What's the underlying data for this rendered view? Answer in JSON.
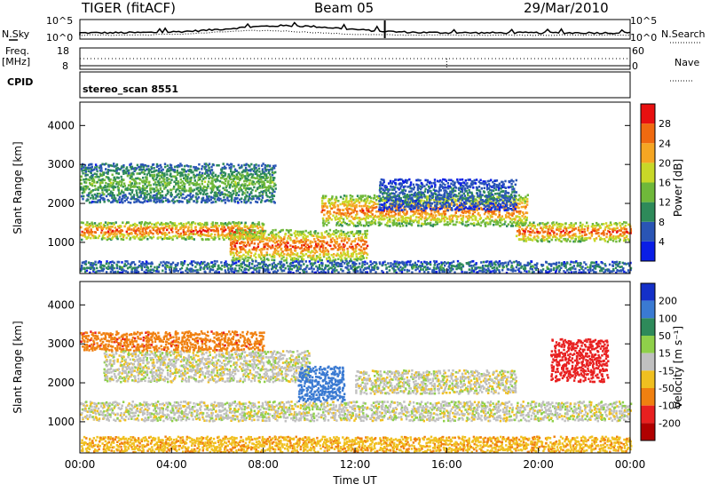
{
  "header": {
    "title": "TIGER (fitACF)",
    "beam": "Beam 05",
    "date": "29/Mar/2010"
  },
  "panels": {
    "nsky_label": "N.Sky",
    "nsearch_label": "N.Search",
    "noise_ticks_left": [
      "10^5",
      "10^0"
    ],
    "noise_ticks_right": [
      "10^5",
      "10^0"
    ],
    "freq_label_1": "Freq.",
    "freq_label_2": "[MHz]",
    "freq_ticks": [
      "18",
      "8"
    ],
    "nave_label": "Nave",
    "nave_ticks": [
      "60",
      "0"
    ],
    "cpid_label": "CPID",
    "cpid_value": "stereo_scan 8551"
  },
  "chart_data": [
    {
      "type": "heatmap",
      "name": "power",
      "ylabel": "Slant Range [km]",
      "xlabel": "",
      "xlim_hours": [
        0,
        24
      ],
      "ylim": [
        200,
        4600
      ],
      "yticks": [
        "1000",
        "2000",
        "3000",
        "4000"
      ],
      "colorbar": {
        "label": "Power [dB]",
        "ticks": [
          "4",
          "8",
          "12",
          "16",
          "20",
          "24",
          "28"
        ],
        "colors": [
          "#0a1ee6",
          "#2a55b5",
          "#2e8a5a",
          "#6fb83a",
          "#c8d828",
          "#f5a623",
          "#f06a10",
          "#e81010"
        ]
      },
      "features": [
        {
          "range_km": [
            1050,
            1500
          ],
          "time_h": [
            0,
            8
          ],
          "level_db": 28
        },
        {
          "range_km": [
            500,
            1300
          ],
          "time_h": [
            6.5,
            12.5
          ],
          "level_db": 28
        },
        {
          "range_km": [
            1400,
            2200
          ],
          "time_h": [
            10.5,
            19.5
          ],
          "level_db": 26
        },
        {
          "range_km": [
            1000,
            1500
          ],
          "time_h": [
            19,
            24
          ],
          "level_db": 28
        },
        {
          "range_km": [
            2000,
            3000
          ],
          "time_h": [
            0,
            8.5
          ],
          "level_db": 14
        },
        {
          "range_km": [
            1800,
            2600
          ],
          "time_h": [
            13,
            19
          ],
          "level_db": 8
        },
        {
          "range_km": [
            200,
            500
          ],
          "time_h": [
            0,
            24
          ],
          "level_db": 10
        }
      ]
    },
    {
      "type": "heatmap",
      "name": "velocity",
      "ylabel": "Slant Range [km]",
      "xlabel": "Time UT",
      "xlim_hours": [
        0,
        24
      ],
      "ylim": [
        200,
        4600
      ],
      "yticks": [
        "1000",
        "2000",
        "3000",
        "4000"
      ],
      "xticks": [
        "00:00",
        "04:00",
        "08:00",
        "12:00",
        "16:00",
        "20:00",
        "00:00"
      ],
      "colorbar": {
        "label": "Velocity [m s⁻¹]",
        "ticks": [
          "200",
          "100",
          "50",
          "15",
          "-15",
          "-50",
          "-100",
          "-200"
        ],
        "colors": [
          "#1430c8",
          "#3a7ad2",
          "#2e8a5a",
          "#8fd04a",
          "#c0c0c0",
          "#f0c020",
          "#f08010",
          "#e82020",
          "#b00000"
        ]
      },
      "features": [
        {
          "range_km": [
            1000,
            1500
          ],
          "time_h": [
            0,
            24
          ],
          "velocity": 0
        },
        {
          "range_km": [
            2000,
            2800
          ],
          "time_h": [
            1,
            10
          ],
          "velocity": 0
        },
        {
          "range_km": [
            2800,
            3300
          ],
          "time_h": [
            0,
            8
          ],
          "velocity": -80
        },
        {
          "range_km": [
            1500,
            2400
          ],
          "time_h": [
            9.5,
            11.5
          ],
          "velocity": 150
        },
        {
          "range_km": [
            2000,
            3100
          ],
          "time_h": [
            20.5,
            23
          ],
          "velocity": -150
        },
        {
          "range_km": [
            1700,
            2300
          ],
          "time_h": [
            12,
            19
          ],
          "velocity": 0
        },
        {
          "range_km": [
            200,
            600
          ],
          "time_h": [
            0,
            24
          ],
          "velocity": -40
        }
      ]
    }
  ]
}
